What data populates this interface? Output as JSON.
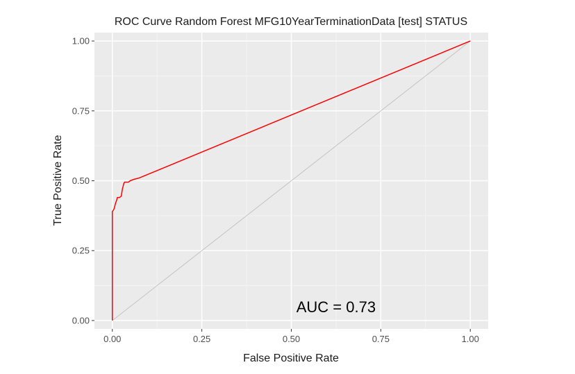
{
  "chart_data": {
    "type": "line",
    "title": "ROC Curve Random Forest MFG10YearTerminationData [test] STATUS",
    "xlabel": "False Positive Rate",
    "ylabel": "True Positive Rate",
    "xlim": [
      -0.05,
      1.05
    ],
    "ylim": [
      -0.03,
      1.03
    ],
    "x_ticks": [
      0.0,
      0.25,
      0.5,
      0.75,
      1.0
    ],
    "x_tick_labels": [
      "0.00",
      "0.25",
      "0.50",
      "0.75",
      "1.00"
    ],
    "y_ticks": [
      0.0,
      0.25,
      0.5,
      0.75,
      1.0
    ],
    "y_tick_labels": [
      "0.00",
      "0.25",
      "0.50",
      "0.75",
      "1.00"
    ],
    "grid": true,
    "background": "#ebebeb",
    "series": [
      {
        "color": "#ff0000",
        "x": [
          0.0,
          0.0,
          0.0,
          0.003,
          0.005,
          0.007,
          0.009,
          0.012,
          0.014,
          0.02,
          0.025,
          0.028,
          0.03,
          0.032,
          0.034,
          0.045,
          0.05,
          0.06,
          0.075,
          1.0
        ],
        "y": [
          0.0,
          0.38,
          0.39,
          0.395,
          0.4,
          0.41,
          0.42,
          0.43,
          0.44,
          0.44,
          0.445,
          0.47,
          0.48,
          0.49,
          0.495,
          0.495,
          0.5,
          0.505,
          0.51,
          1.0
        ]
      },
      {
        "color": "#bebebe",
        "x": [
          0.0,
          1.0
        ],
        "y": [
          0.0,
          1.0
        ]
      }
    ],
    "annotation": {
      "text": "AUC = 0.73",
      "x": 0.625,
      "y": 0.03
    }
  }
}
